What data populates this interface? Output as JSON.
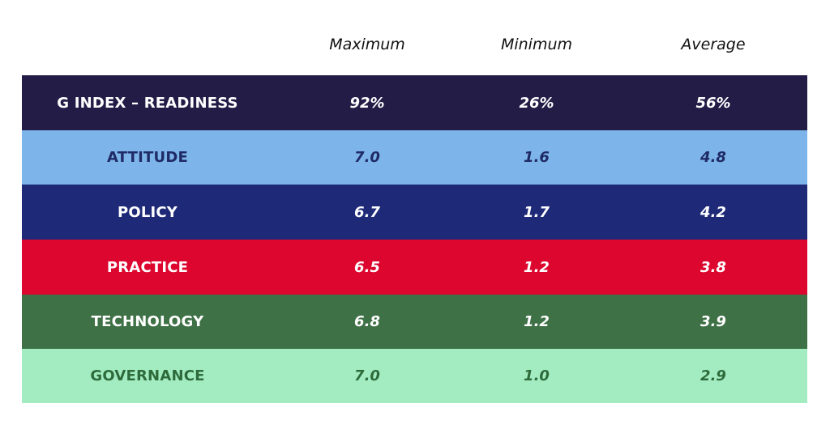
{
  "columns": [
    "Maximum",
    "Minimum",
    "Average"
  ],
  "rows": [
    {
      "label": "G INDEX – READINESS",
      "values": [
        "92%",
        "26%",
        "56%"
      ],
      "bg": "#231c46",
      "label_color": "#ffffff",
      "value_color": "#ffffff"
    },
    {
      "label": "ATTITUDE",
      "values": [
        "7.0",
        "1.6",
        "4.8"
      ],
      "bg": "#7db5ea",
      "label_color": "#1f2a66",
      "value_color": "#1f2a66"
    },
    {
      "label": "POLICY",
      "values": [
        "6.7",
        "1.7",
        "4.2"
      ],
      "bg": "#1e2a78",
      "label_color": "#ffffff",
      "value_color": "#ffffff"
    },
    {
      "label": "PRACTICE",
      "values": [
        "6.5",
        "1.2",
        "3.8"
      ],
      "bg": "#dc062e",
      "label_color": "#ffffff",
      "value_color": "#ffffff"
    },
    {
      "label": "TECHNOLOGY",
      "values": [
        "6.8",
        "1.2",
        "3.9"
      ],
      "bg": "#3f7146",
      "label_color": "#ffffff",
      "value_color": "#ffffff"
    },
    {
      "label": "GOVERNANCE",
      "values": [
        "7.0",
        "1.0",
        "2.9"
      ],
      "bg": "#a3ecc2",
      "label_color": "#2e6b3b",
      "value_color": "#2e6b3b"
    }
  ]
}
